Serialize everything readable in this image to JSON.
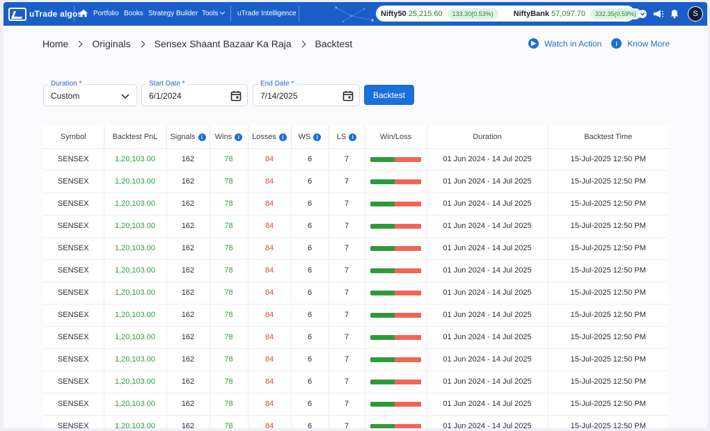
{
  "brand": {
    "logo_text": "uTrade algos"
  },
  "nav": {
    "items": [
      "Portfolio",
      "Books",
      "Strategy Builder",
      "Tools",
      "uTrade Intelligence"
    ]
  },
  "ticker": {
    "nifty": {
      "name": "Nifty50",
      "value": "25,215.60",
      "change": "133.30(0.53%)"
    },
    "bank": {
      "name": "NiftyBank",
      "value": "57,097.70",
      "change": "332.35(0.59%)"
    }
  },
  "user": {
    "initial": "S"
  },
  "breadcrumb": [
    "Home",
    "Originals",
    "Sensex Shaant Bazaar Ka Raja",
    "Backtest"
  ],
  "actions": {
    "watch": "Watch in Action",
    "know": "Know More"
  },
  "filters": {
    "duration": {
      "label": "Duration *",
      "value": "Custom"
    },
    "start": {
      "label": "Start Date *",
      "value": "6/1/2024"
    },
    "end": {
      "label": "End Date *",
      "value": "7/14/2025"
    },
    "button": "Backtest"
  },
  "table": {
    "headers": [
      "Symbol",
      "Backtest PnL",
      "Signals",
      "Wins",
      "Losses",
      "WS",
      "LS",
      "Win/Loss",
      "Duration",
      "Backtest Time"
    ],
    "rows": [
      {
        "symbol": "SENSEX",
        "pnl": "1,20,103.00",
        "signals": "162",
        "wins": "78",
        "losses": "84",
        "ws": "6",
        "ls": "7",
        "win_ratio": 0.48,
        "duration": "01 Jun 2024 - 14 Jul 2025",
        "time": "15-Jul-2025 12:50 PM"
      },
      {
        "symbol": "SENSEX",
        "pnl": "1,20,103.00",
        "signals": "162",
        "wins": "78",
        "losses": "84",
        "ws": "6",
        "ls": "7",
        "win_ratio": 0.48,
        "duration": "01 Jun 2024 - 14 Jul 2025",
        "time": "15-Jul-2025 12:50 PM"
      },
      {
        "symbol": "SENSEX",
        "pnl": "1,20,103.00",
        "signals": "162",
        "wins": "78",
        "losses": "84",
        "ws": "6",
        "ls": "7",
        "win_ratio": 0.48,
        "duration": "01 Jun 2024 - 14 Jul 2025",
        "time": "15-Jul-2025 12:50 PM"
      },
      {
        "symbol": "SENSEX",
        "pnl": "1,20,103.00",
        "signals": "162",
        "wins": "78",
        "losses": "84",
        "ws": "6",
        "ls": "7",
        "win_ratio": 0.48,
        "duration": "01 Jun 2024 - 14 Jul 2025",
        "time": "15-Jul-2025 12:50 PM"
      },
      {
        "symbol": "SENSEX",
        "pnl": "1,20,103.00",
        "signals": "162",
        "wins": "78",
        "losses": "84",
        "ws": "6",
        "ls": "7",
        "win_ratio": 0.48,
        "duration": "01 Jun 2024 - 14 Jul 2025",
        "time": "15-Jul-2025 12:50 PM"
      },
      {
        "symbol": "SENSEX",
        "pnl": "1,20,103.00",
        "signals": "162",
        "wins": "78",
        "losses": "84",
        "ws": "6",
        "ls": "7",
        "win_ratio": 0.48,
        "duration": "01 Jun 2024 - 14 Jul 2025",
        "time": "15-Jul-2025 12:50 PM"
      },
      {
        "symbol": "SENSEX",
        "pnl": "1,20,103.00",
        "signals": "162",
        "wins": "78",
        "losses": "84",
        "ws": "6",
        "ls": "7",
        "win_ratio": 0.48,
        "duration": "01 Jun 2024 - 14 Jul 2025",
        "time": "15-Jul-2025 12:50 PM"
      },
      {
        "symbol": "SENSEX",
        "pnl": "1,20,103.00",
        "signals": "162",
        "wins": "78",
        "losses": "84",
        "ws": "6",
        "ls": "7",
        "win_ratio": 0.48,
        "duration": "01 Jun 2024 - 14 Jul 2025",
        "time": "15-Jul-2025 12:50 PM"
      },
      {
        "symbol": "SENSEX",
        "pnl": "1,20,103.00",
        "signals": "162",
        "wins": "78",
        "losses": "84",
        "ws": "6",
        "ls": "7",
        "win_ratio": 0.48,
        "duration": "01 Jun 2024 - 14 Jul 2025",
        "time": "15-Jul-2025 12:50 PM"
      },
      {
        "symbol": "SENSEX",
        "pnl": "1,20,103.00",
        "signals": "162",
        "wins": "78",
        "losses": "84",
        "ws": "6",
        "ls": "7",
        "win_ratio": 0.48,
        "duration": "01 Jun 2024 - 14 Jul 2025",
        "time": "15-Jul-2025 12:50 PM"
      },
      {
        "symbol": "SENSEX",
        "pnl": "1,20,103.00",
        "signals": "162",
        "wins": "78",
        "losses": "84",
        "ws": "6",
        "ls": "7",
        "win_ratio": 0.48,
        "duration": "01 Jun 2024 - 14 Jul 2025",
        "time": "15-Jul-2025 12:50 PM"
      },
      {
        "symbol": "SENSEX",
        "pnl": "1,20,103.00",
        "signals": "162",
        "wins": "78",
        "losses": "84",
        "ws": "6",
        "ls": "7",
        "win_ratio": 0.48,
        "duration": "01 Jun 2024 - 14 Jul 2025",
        "time": "15-Jul-2025 12:50 PM"
      },
      {
        "symbol": "SENSEX",
        "pnl": "1,20,103.00",
        "signals": "162",
        "wins": "78",
        "losses": "84",
        "ws": "6",
        "ls": "7",
        "win_ratio": 0.48,
        "duration": "01 Jun 2024 - 14 Jul 2025",
        "time": "15-Jul-2025 12:50 PM"
      }
    ]
  },
  "colors": {
    "brand": "#1a5fc9",
    "accent": "#1a6fdb",
    "win": "#2e9a3b",
    "loss": "#e0453a"
  }
}
